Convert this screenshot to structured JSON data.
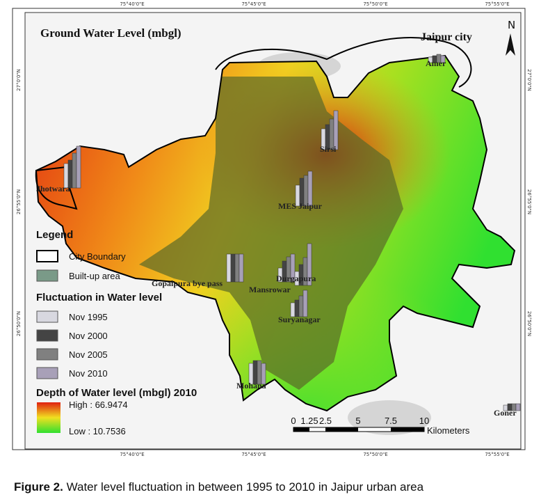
{
  "map": {
    "title": "Ground Water Level (mbgl)",
    "north": "N",
    "city_label": "Jaipur city",
    "coords": {
      "top": [
        "75°40'0\"E",
        "75°45'0\"E",
        "75°50'0\"E",
        "75°55'0\"E"
      ],
      "bottom": [
        "75°40'0\"E",
        "75°45'0\"E",
        "75°50'0\"E",
        "75°55'0\"E"
      ],
      "left": [
        "27°0'0\"N",
        "26°55'0\"N",
        "26°50'0\"N"
      ],
      "right": [
        "27°0'0\"N",
        "26°55'0\"N",
        "26°50'0\"N"
      ]
    },
    "places": [
      "Amer",
      "Sirsi",
      "Jhotwara",
      "MES Jaipur",
      "Gopalpura bye pass",
      "Durgapura",
      "Mansrowar",
      "Suryanagar",
      "Mohana",
      "Goner"
    ],
    "legend": {
      "title": "Legend",
      "items": [
        "City Boundary",
        "Built-up area"
      ],
      "fluctuation_title": "Fluctuation in Water level",
      "fluctuation_items": [
        "Nov 1995",
        "Nov 2000",
        "Nov 2005",
        "Nov 2010"
      ],
      "depth_title": "Depth of Water level (mbgl) 2010",
      "high": "High : 66.9474",
      "low": "Low : 10.7536"
    },
    "scale": {
      "ticks": [
        "0",
        "1.25",
        "2.5",
        "5",
        "7.5",
        "10"
      ],
      "unit": "Kilometers"
    }
  },
  "caption": {
    "label": "Figure 2.",
    "text": "Water level fluctuation in between 1995 to 2010 in Jaipur urban area"
  }
}
